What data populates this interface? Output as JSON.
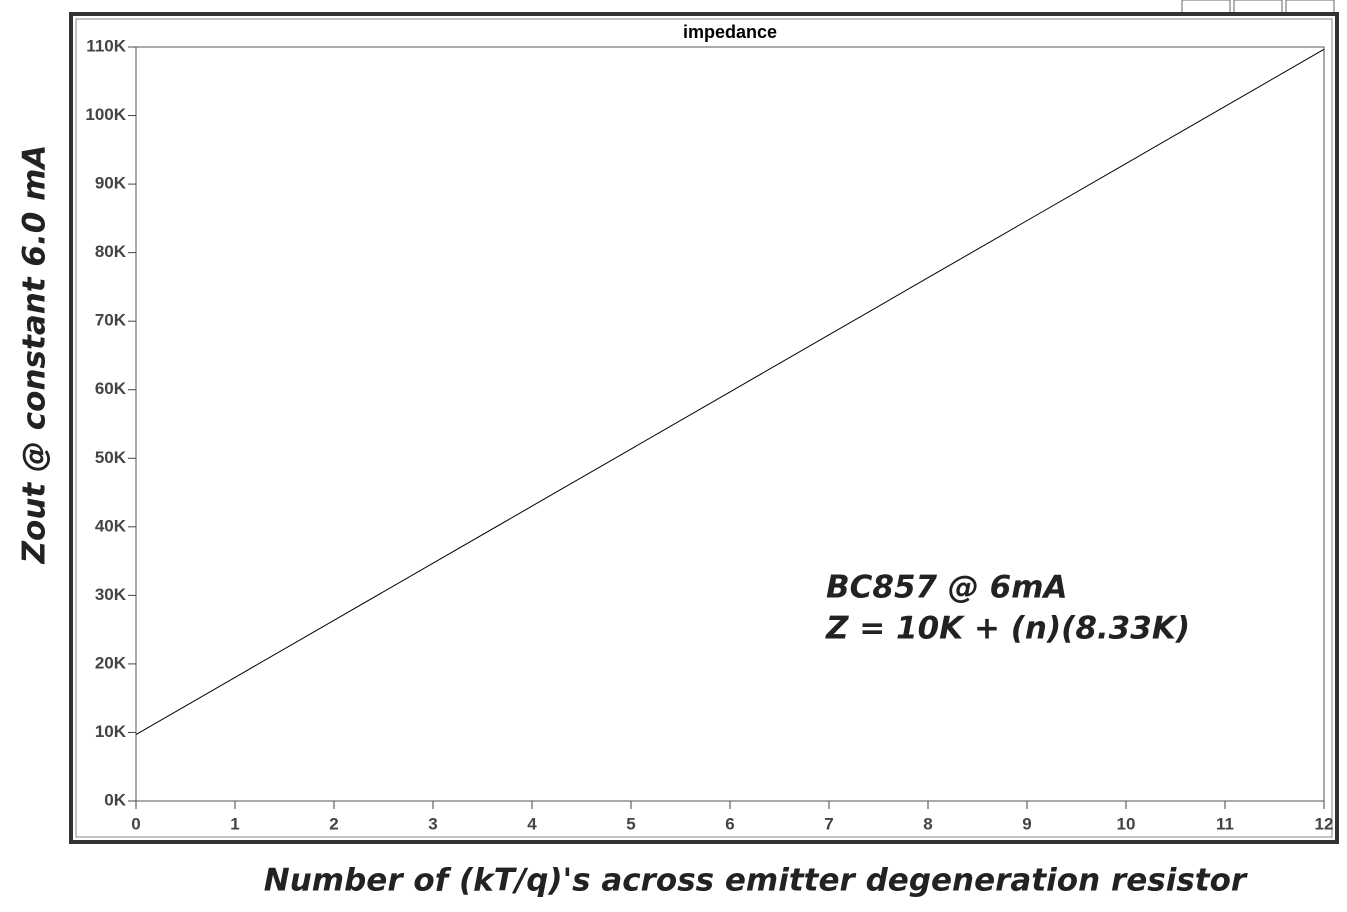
{
  "chart_data": {
    "type": "line",
    "title": "impedance",
    "x_label": "Number of (kT/q)'s across emitter degeneration resistor",
    "y_label": "Zout @ constant 6.0 mA",
    "annotations": [
      "BC857 @ 6mA",
      "Z = 10K + (n)(8.33K)"
    ],
    "x": [
      0,
      1,
      2,
      3,
      4,
      5,
      6,
      7,
      8,
      9,
      10,
      11,
      12
    ],
    "series": [
      {
        "name": "impedance",
        "color": "#000000",
        "values": [
          9700,
          18030,
          26360,
          34690,
          43020,
          51350,
          59680,
          68010,
          76340,
          84670,
          93000,
          101330,
          109660
        ]
      }
    ],
    "xlim": [
      0,
      12
    ],
    "xticks": [
      0,
      1,
      2,
      3,
      4,
      5,
      6,
      7,
      8,
      9,
      10,
      11,
      12
    ],
    "ylim": [
      0,
      110000
    ],
    "yticks": [
      {
        "value": 0,
        "label": "0K"
      },
      {
        "value": 10000,
        "label": "10K"
      },
      {
        "value": 20000,
        "label": "20K"
      },
      {
        "value": 30000,
        "label": "30K"
      },
      {
        "value": 40000,
        "label": "40K"
      },
      {
        "value": 50000,
        "label": "50K"
      },
      {
        "value": 60000,
        "label": "60K"
      },
      {
        "value": 70000,
        "label": "70K"
      },
      {
        "value": 80000,
        "label": "80K"
      },
      {
        "value": 90000,
        "label": "90K"
      },
      {
        "value": 100000,
        "label": "100K"
      },
      {
        "value": 110000,
        "label": "110K"
      }
    ],
    "grid": false
  }
}
